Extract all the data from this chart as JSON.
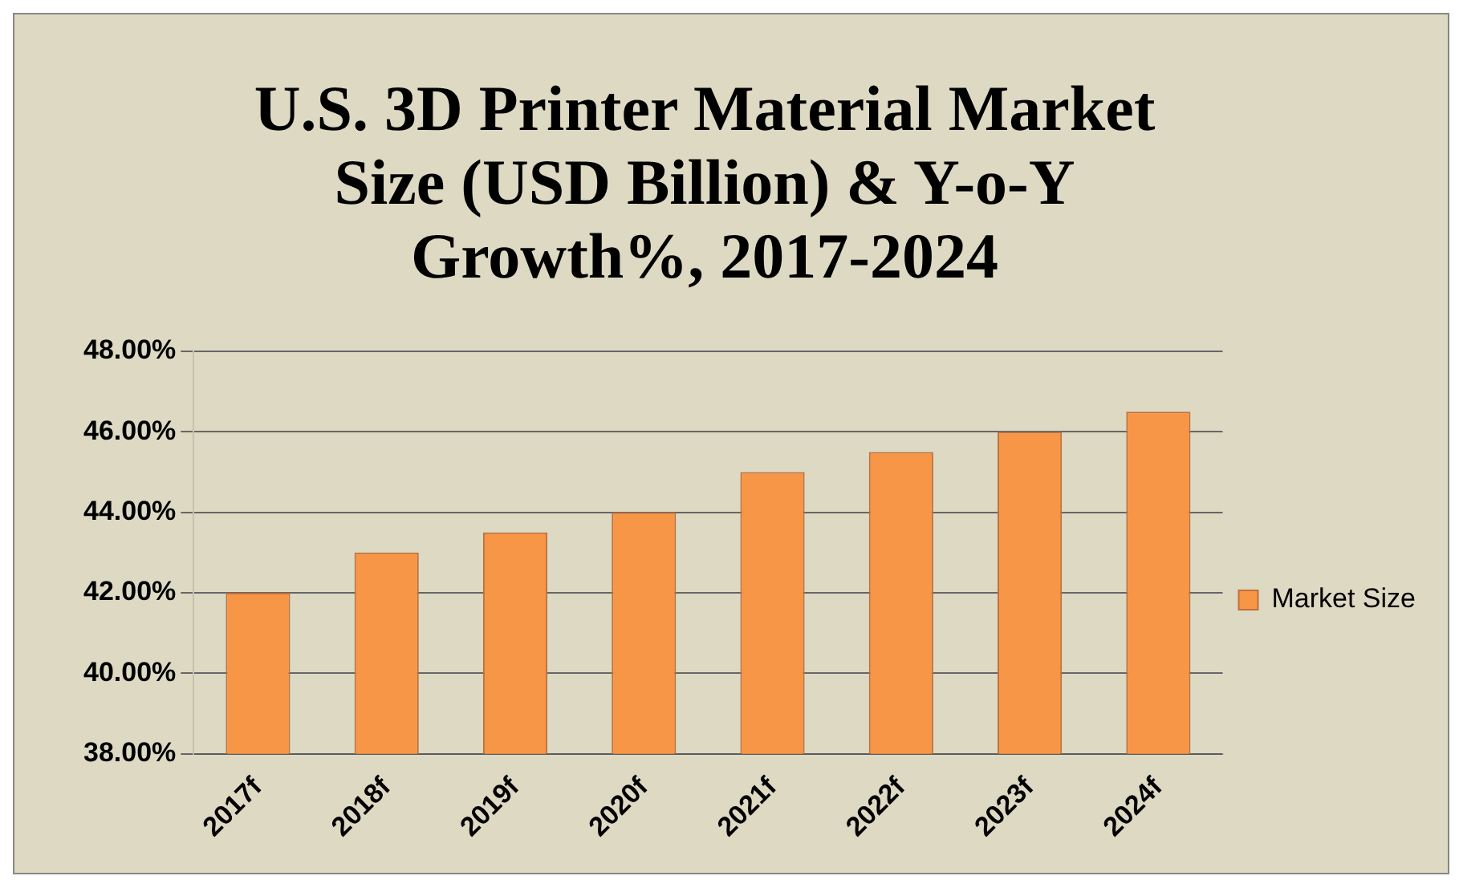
{
  "chart_data": {
    "type": "bar",
    "title": "U.S. 3D Printer Material Market Size (USD Billion) & Y-o-Y Growth%, 2017-2024",
    "categories": [
      "2017f",
      "2018f",
      "2019f",
      "2020f",
      "2021f",
      "2022f",
      "2023f",
      "2024f"
    ],
    "series": [
      {
        "name": "Market Size",
        "color": "#f79646",
        "values": [
          42,
          43,
          43.5,
          44,
          45,
          45.5,
          46,
          46.5
        ]
      }
    ],
    "ylim": [
      38,
      48
    ],
    "yticks": [
      {
        "value": 38,
        "label": "38.00%"
      },
      {
        "value": 40,
        "label": "40.00%"
      },
      {
        "value": 42,
        "label": "42.00%"
      },
      {
        "value": 44,
        "label": "44.00%"
      },
      {
        "value": 46,
        "label": "46.00%"
      },
      {
        "value": 48,
        "label": "48.00%"
      }
    ],
    "grid": "y",
    "legend": "right"
  }
}
